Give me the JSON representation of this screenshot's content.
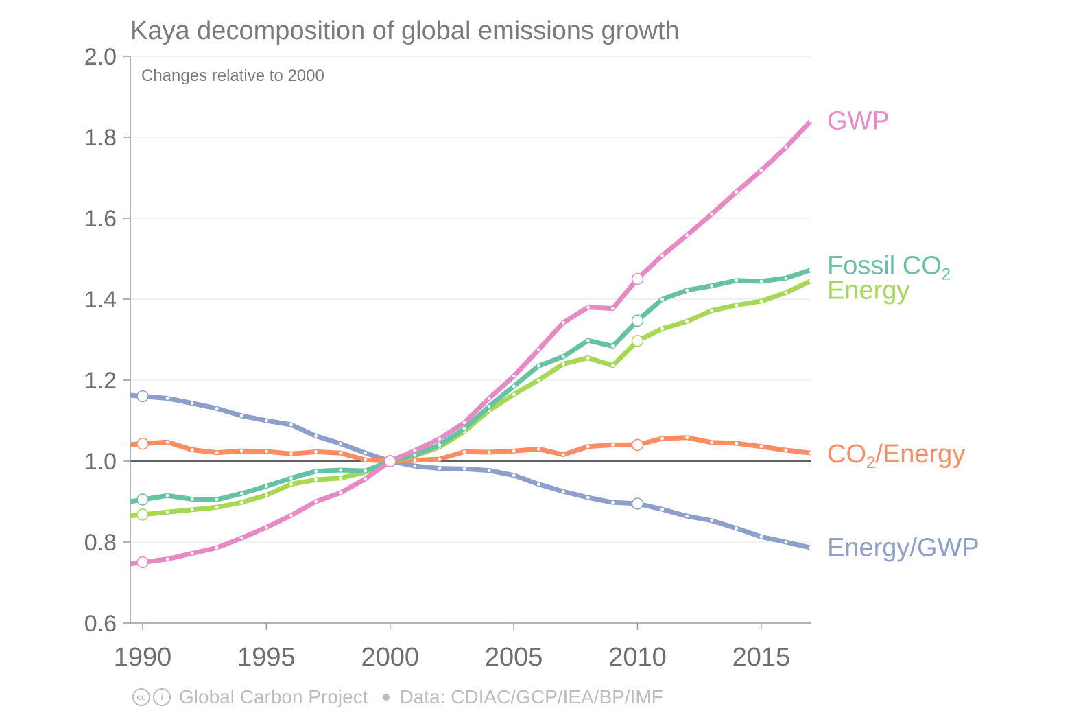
{
  "chart_data": {
    "type": "line",
    "title": "Kaya decomposition of global emissions growth",
    "subtitle": "Changes relative to 2000",
    "xlim": [
      1989.5,
      2017
    ],
    "ylim": [
      0.6,
      2.0
    ],
    "x_ticks": [
      "1990",
      "1995",
      "2000",
      "2005",
      "2010",
      "2015"
    ],
    "y_ticks": [
      "0.6",
      "0.8",
      "1.0",
      "1.2",
      "1.4",
      "1.6",
      "1.8",
      "2.0"
    ],
    "reference_line": 1.0,
    "grid": "horizontal",
    "legend": "direct labels at right end of lines",
    "x": [
      1990,
      1991,
      1992,
      1993,
      1994,
      1995,
      1996,
      1997,
      1998,
      1999,
      2000,
      2001,
      2002,
      2003,
      2004,
      2005,
      2006,
      2007,
      2008,
      2009,
      2010,
      2011,
      2012,
      2013,
      2014,
      2015,
      2016,
      2017
    ],
    "highlight_years": [
      1990,
      2000,
      2010
    ],
    "series": [
      {
        "name": "GWP",
        "color": "#e78ac3",
        "values": [
          0.75,
          0.758,
          0.772,
          0.786,
          0.81,
          0.836,
          0.866,
          0.9,
          0.922,
          0.956,
          1.0,
          1.026,
          1.055,
          1.095,
          1.155,
          1.21,
          1.275,
          1.342,
          1.38,
          1.377,
          1.45,
          1.508,
          1.558,
          1.61,
          1.665,
          1.718,
          1.775,
          1.84
        ]
      },
      {
        "name": "Fossil CO2",
        "label_main": "Fossil CO",
        "label_sub": "2",
        "color": "#66c2a5",
        "values": [
          0.905,
          0.915,
          0.906,
          0.905,
          0.92,
          0.938,
          0.958,
          0.975,
          0.978,
          0.976,
          1.0,
          1.015,
          1.04,
          1.08,
          1.135,
          1.185,
          1.235,
          1.258,
          1.298,
          1.284,
          1.347,
          1.4,
          1.422,
          1.433,
          1.446,
          1.444,
          1.452,
          1.472
        ]
      },
      {
        "name": "Energy",
        "color": "#a6d854",
        "values": [
          0.868,
          0.874,
          0.88,
          0.886,
          0.898,
          0.916,
          0.943,
          0.954,
          0.958,
          0.973,
          1.0,
          1.013,
          1.035,
          1.073,
          1.125,
          1.165,
          1.2,
          1.24,
          1.255,
          1.236,
          1.297,
          1.327,
          1.345,
          1.372,
          1.385,
          1.395,
          1.416,
          1.445
        ]
      },
      {
        "name": "CO2/Energy",
        "label_main": "CO",
        "label_sub": "2",
        "label_rest": "/Energy",
        "color": "#fc8d62",
        "values": [
          1.043,
          1.047,
          1.028,
          1.021,
          1.025,
          1.024,
          1.018,
          1.023,
          1.02,
          1.003,
          1.0,
          1.002,
          1.005,
          1.023,
          1.022,
          1.025,
          1.03,
          1.016,
          1.036,
          1.04,
          1.04,
          1.056,
          1.058,
          1.046,
          1.044,
          1.036,
          1.027,
          1.02
        ]
      },
      {
        "name": "Energy/GWP",
        "color": "#8da0cb",
        "values": [
          1.16,
          1.155,
          1.143,
          1.13,
          1.112,
          1.1,
          1.09,
          1.062,
          1.043,
          1.02,
          1.0,
          0.988,
          0.982,
          0.981,
          0.977,
          0.965,
          0.943,
          0.925,
          0.91,
          0.898,
          0.895,
          0.881,
          0.864,
          0.853,
          0.834,
          0.813,
          0.8,
          0.786
        ]
      }
    ]
  },
  "footer": {
    "cc_icon": "creative-commons-icon",
    "by_icon": "attribution-icon",
    "project": "Global Carbon Project",
    "data_source": "Data: CDIAC/GCP/IEA/BP/IMF"
  }
}
